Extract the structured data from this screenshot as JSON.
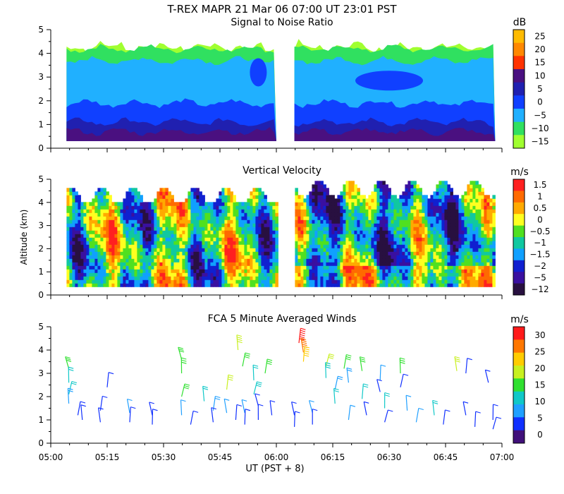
{
  "title": "T-REX   MAPR 21 Mar 06   07:00 UT   23:01   PST",
  "x_axis": {
    "label": "UT  (PST + 8)",
    "ticks": [
      "05:00",
      "05:15",
      "05:30",
      "05:45",
      "06:00",
      "06:15",
      "06:30",
      "06:45",
      "07:00"
    ]
  },
  "y_axis_label": "Altitude (km)",
  "y_ticks": [
    "0",
    "1",
    "2",
    "3",
    "4",
    "5"
  ],
  "chart_data": [
    {
      "type": "heatmap",
      "title": "Signal to Noise Ratio",
      "xlabel": "UT  (PST + 8)",
      "ylabel": "Altitude (km)",
      "x_range": [
        "05:00",
        "07:00"
      ],
      "ylim": [
        0,
        5
      ],
      "data_gap": [
        "06:00",
        "06:05"
      ],
      "colorbar": {
        "unit": "dB",
        "labels": [
          "25",
          "20",
          "15",
          "10",
          "5",
          "0",
          "−5",
          "−10",
          "−15"
        ],
        "colors": [
          "#ffbb00",
          "#ff8800",
          "#ff3300",
          "#4a1080",
          "#2020b0",
          "#1040ff",
          "#20b0ff",
          "#30e060",
          "#a0ff30"
        ]
      },
      "description_series": [
        {
          "name": "low layer 0.3-1 km",
          "approx_dB": 5
        },
        {
          "name": "mid layer 1-3 km",
          "approx_dB": -5
        },
        {
          "name": "upper layer 3.5-4.5 km",
          "approx_dB": -10
        }
      ]
    },
    {
      "type": "heatmap",
      "title": "Vertical Velocity",
      "xlabel": "UT  (PST + 8)",
      "ylabel": "Altitude (km)",
      "x_range": [
        "05:00",
        "07:00"
      ],
      "ylim": [
        0,
        5
      ],
      "data_gap": [
        "06:00",
        "06:05"
      ],
      "colorbar": {
        "unit": "m/s",
        "labels": [
          "1.5",
          "1",
          "0.5",
          "0",
          "−0.5",
          "−1",
          "−1.5",
          "−2",
          "−5",
          "−12"
        ],
        "colors": [
          "#ff2020",
          "#ff6a00",
          "#ffaa00",
          "#ffff20",
          "#50e020",
          "#10c8a0",
          "#10a0ff",
          "#1020d0",
          "#3a10a0",
          "#281040"
        ]
      }
    },
    {
      "type": "scatter",
      "title": "FCA 5 Minute Averaged Winds",
      "xlabel": "UT  (PST + 8)",
      "ylabel": "Altitude (km)",
      "x_range": [
        "05:00",
        "07:00"
      ],
      "ylim": [
        0,
        5
      ],
      "marker": "wind barb",
      "colorbar": {
        "unit": "m/s",
        "labels": [
          "30",
          "25",
          "20",
          "15",
          "10",
          "5",
          "0"
        ],
        "colors": [
          "#ff1a1a",
          "#ff7700",
          "#ffcc00",
          "#c8f020",
          "#30e030",
          "#10c8c8",
          "#20a0ff",
          "#1030ff",
          "#40107a"
        ]
      },
      "barbs": [
        {
          "t": 5.08,
          "z": 3.2,
          "speed": 14
        },
        {
          "t": 5.08,
          "z": 2.6,
          "speed": 11
        },
        {
          "t": 5.08,
          "z": 2.1,
          "speed": 10
        },
        {
          "t": 5.08,
          "z": 1.7,
          "speed": 9
        },
        {
          "t": 5.12,
          "z": 1.2,
          "speed": 4
        },
        {
          "t": 5.14,
          "z": 1.0,
          "speed": 3
        },
        {
          "t": 5.22,
          "z": 1.4,
          "speed": 5
        },
        {
          "t": 5.22,
          "z": 0.9,
          "speed": 3
        },
        {
          "t": 5.25,
          "z": 2.4,
          "speed": 2
        },
        {
          "t": 5.35,
          "z": 1.3,
          "speed": 6
        },
        {
          "t": 5.35,
          "z": 0.9,
          "speed": 4
        },
        {
          "t": 5.45,
          "z": 1.2,
          "speed": 5
        },
        {
          "t": 5.45,
          "z": 0.8,
          "speed": 3
        },
        {
          "t": 5.58,
          "z": 3.6,
          "speed": 16
        },
        {
          "t": 5.58,
          "z": 3.0,
          "speed": 15
        },
        {
          "t": 5.58,
          "z": 2.0,
          "speed": 14
        },
        {
          "t": 5.58,
          "z": 1.2,
          "speed": 6
        },
        {
          "t": 5.62,
          "z": 0.8,
          "speed": 4
        },
        {
          "t": 5.68,
          "z": 1.8,
          "speed": 12
        },
        {
          "t": 5.72,
          "z": 1.4,
          "speed": 8
        },
        {
          "t": 5.72,
          "z": 0.9,
          "speed": 5
        },
        {
          "t": 5.78,
          "z": 2.3,
          "speed": 17
        },
        {
          "t": 5.78,
          "z": 1.3,
          "speed": 6
        },
        {
          "t": 5.82,
          "z": 1.0,
          "speed": 4
        },
        {
          "t": 5.86,
          "z": 1.3,
          "speed": 7
        },
        {
          "t": 5.86,
          "z": 0.8,
          "speed": 4
        },
        {
          "t": 5.92,
          "z": 1.6,
          "speed": 5
        },
        {
          "t": 5.92,
          "z": 1.0,
          "speed": 4
        },
        {
          "t": 5.9,
          "z": 2.1,
          "speed": 13
        },
        {
          "t": 5.9,
          "z": 2.7,
          "speed": 12
        },
        {
          "t": 5.85,
          "z": 3.3,
          "speed": 16
        },
        {
          "t": 5.83,
          "z": 4.0,
          "speed": 18
        },
        {
          "t": 5.95,
          "z": 3.0,
          "speed": 14
        },
        {
          "t": 5.98,
          "z": 1.2,
          "speed": 5
        },
        {
          "t": 6.1,
          "z": 4.3,
          "speed": 29
        },
        {
          "t": 6.12,
          "z": 3.9,
          "speed": 27
        },
        {
          "t": 6.12,
          "z": 3.5,
          "speed": 24
        },
        {
          "t": 6.08,
          "z": 1.2,
          "speed": 4
        },
        {
          "t": 6.08,
          "z": 0.7,
          "speed": 2
        },
        {
          "t": 6.16,
          "z": 1.3,
          "speed": 6
        },
        {
          "t": 6.16,
          "z": 0.8,
          "speed": 4
        },
        {
          "t": 6.22,
          "z": 3.3,
          "speed": 17
        },
        {
          "t": 6.22,
          "z": 2.8,
          "speed": 13
        },
        {
          "t": 6.26,
          "z": 2.3,
          "speed": 8
        },
        {
          "t": 6.26,
          "z": 1.7,
          "speed": 10
        },
        {
          "t": 6.3,
          "z": 3.2,
          "speed": 16
        },
        {
          "t": 6.32,
          "z": 2.6,
          "speed": 9
        },
        {
          "t": 6.32,
          "z": 1.0,
          "speed": 6
        },
        {
          "t": 6.38,
          "z": 3.1,
          "speed": 15
        },
        {
          "t": 6.38,
          "z": 1.9,
          "speed": 12
        },
        {
          "t": 6.4,
          "z": 1.2,
          "speed": 5
        },
        {
          "t": 6.46,
          "z": 2.7,
          "speed": 6
        },
        {
          "t": 6.46,
          "z": 2.2,
          "speed": 4
        },
        {
          "t": 6.48,
          "z": 1.5,
          "speed": 10
        },
        {
          "t": 6.48,
          "z": 0.9,
          "speed": 5
        },
        {
          "t": 6.55,
          "z": 3.0,
          "speed": 15
        },
        {
          "t": 6.55,
          "z": 2.4,
          "speed": 3
        },
        {
          "t": 6.58,
          "z": 1.4,
          "speed": 7
        },
        {
          "t": 6.62,
          "z": 0.9,
          "speed": 6
        },
        {
          "t": 6.7,
          "z": 1.2,
          "speed": 12
        },
        {
          "t": 6.74,
          "z": 0.8,
          "speed": 5
        },
        {
          "t": 6.8,
          "z": 3.1,
          "speed": 17
        },
        {
          "t": 6.84,
          "z": 3.0,
          "speed": 5
        },
        {
          "t": 6.84,
          "z": 1.2,
          "speed": 4
        },
        {
          "t": 6.88,
          "z": 0.7,
          "speed": 4
        },
        {
          "t": 6.94,
          "z": 2.6,
          "speed": 5
        },
        {
          "t": 6.96,
          "z": 1.0,
          "speed": 4
        },
        {
          "t": 6.96,
          "z": 0.6,
          "speed": 4
        }
      ]
    }
  ]
}
